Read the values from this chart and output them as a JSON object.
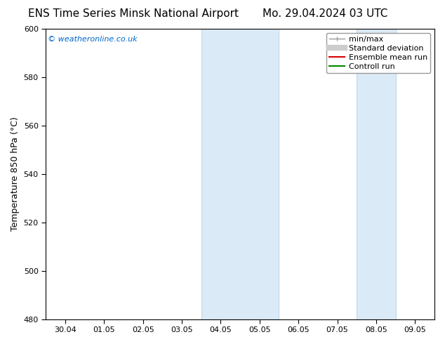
{
  "title_left": "ENS Time Series Minsk National Airport",
  "title_right": "Mo. 29.04.2024 03 UTC",
  "ylabel": "Temperature 850 hPa (°C)",
  "background_color": "#ffffff",
  "plot_bg_color": "#ffffff",
  "ylim": [
    480,
    600
  ],
  "yticks": [
    480,
    500,
    520,
    540,
    560,
    580,
    600
  ],
  "xtick_labels": [
    "30.04",
    "01.05",
    "02.05",
    "03.05",
    "04.05",
    "05.05",
    "06.05",
    "07.05",
    "08.05",
    "09.05"
  ],
  "num_xticks": 10,
  "shaded_regions": [
    {
      "xstart": 4,
      "xend": 6,
      "color": "#daeaf7",
      "edgecolor": "#b8d4ea"
    },
    {
      "xstart": 8,
      "xend": 9,
      "color": "#daeaf7",
      "edgecolor": "#b8d4ea"
    }
  ],
  "watermark_text": "© weatheronline.co.uk",
  "watermark_color": "#0066cc",
  "legend_items": [
    {
      "label": "min/max",
      "color": "#999999",
      "lw": 1.0,
      "type": "line_cap"
    },
    {
      "label": "Standard deviation",
      "color": "#cccccc",
      "lw": 6,
      "type": "thick_line"
    },
    {
      "label": "Ensemble mean run",
      "color": "#dd0000",
      "lw": 1.5,
      "type": "line"
    },
    {
      "label": "Controll run",
      "color": "#008800",
      "lw": 1.5,
      "type": "line"
    }
  ],
  "title_fontsize": 11,
  "axis_label_fontsize": 9,
  "tick_fontsize": 8,
  "watermark_fontsize": 8,
  "legend_fontsize": 8
}
